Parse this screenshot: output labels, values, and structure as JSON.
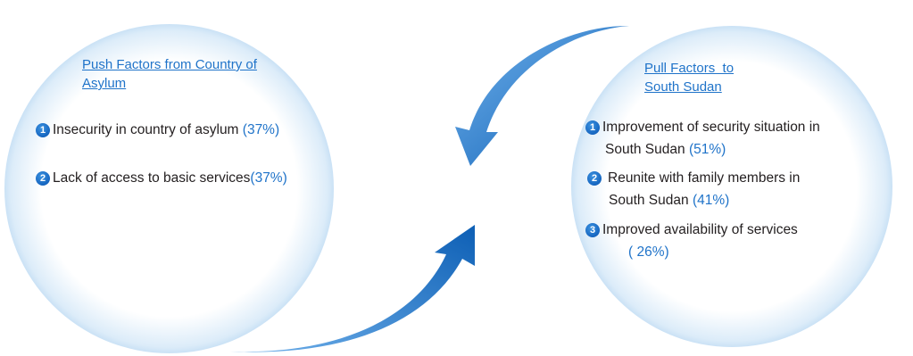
{
  "push": {
    "title_line1": "Push Factors from Country of",
    "title_line2": "Asylum",
    "items": [
      {
        "num": "1",
        "text": "Insecurity in country of asylum ",
        "pct": "(37%)"
      },
      {
        "num": "2",
        "text": "Lack of access to basic services",
        "pct": "(37%)"
      }
    ]
  },
  "pull": {
    "title_line1": "Pull Factors  to",
    "title_line2": "South Sudan",
    "items": [
      {
        "num": "1",
        "line1": "Improvement of security situation in",
        "line2": "South Sudan ",
        "pct": "(51%)"
      },
      {
        "num": "2",
        "line1": "Reunite with family members in",
        "line2": "South Sudan ",
        "pct": "(41%)"
      },
      {
        "num": "3",
        "line1": "Improved availability of services",
        "line2": "",
        "pct": "( 26%)"
      }
    ]
  },
  "colors": {
    "accent": "#1f73c9",
    "arrow": "#1565c0",
    "text": "#231f20"
  }
}
